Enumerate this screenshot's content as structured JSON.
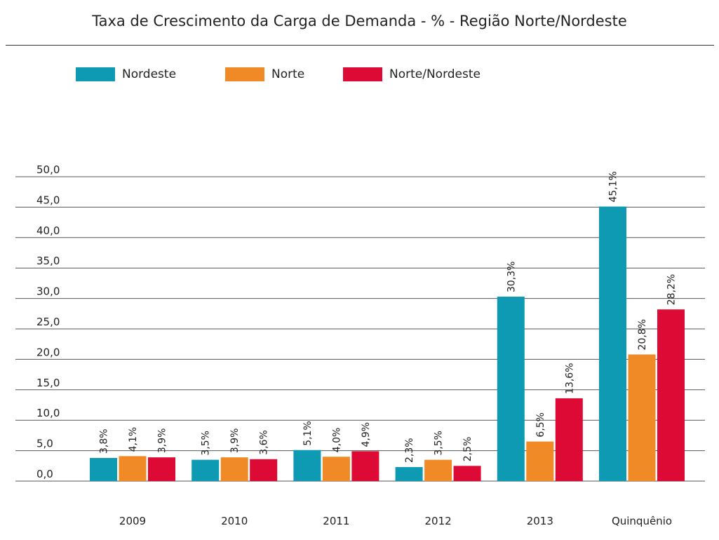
{
  "chart_data": {
    "type": "bar",
    "title": "Taxa de Crescimento da Carga de Demanda - % - Região Norte/Nordeste",
    "categories": [
      "2009",
      "2010",
      "2011",
      "2012",
      "2013",
      "Quinquênio"
    ],
    "series": [
      {
        "name": "Nordeste",
        "color": "#0d9ab2",
        "values": [
          3.8,
          3.5,
          5.1,
          2.3,
          30.3,
          45.1
        ],
        "labels": [
          "3,8%",
          "3,5%",
          "5,1%",
          "2,3%",
          "30,3%",
          "45,1%"
        ]
      },
      {
        "name": "Norte",
        "color": "#f08a26",
        "values": [
          4.1,
          3.9,
          4.0,
          3.5,
          6.5,
          20.8
        ],
        "labels": [
          "4,1%",
          "3,9%",
          "4,0%",
          "3,5%",
          "6,5%",
          "20,8%"
        ]
      },
      {
        "name": "Norte/Nordeste",
        "color": "#dc0a34",
        "values": [
          3.9,
          3.6,
          4.9,
          2.5,
          13.6,
          28.2
        ],
        "labels": [
          "3,9%",
          "3,6%",
          "4,9%",
          "2,5%",
          "13,6%",
          "28,2%"
        ]
      }
    ],
    "ylim": [
      0,
      50
    ],
    "yticks": [
      0,
      5,
      10,
      15,
      20,
      25,
      30,
      35,
      40,
      45,
      50
    ],
    "ytick_labels": [
      "0,0",
      "5,0",
      "10,0",
      "15,0",
      "20,0",
      "25,0",
      "30,0",
      "35,0",
      "40,0",
      "45,0",
      "50,0"
    ],
    "xlabel": "",
    "ylabel": "",
    "grid": true,
    "legend_position": "top-left"
  }
}
